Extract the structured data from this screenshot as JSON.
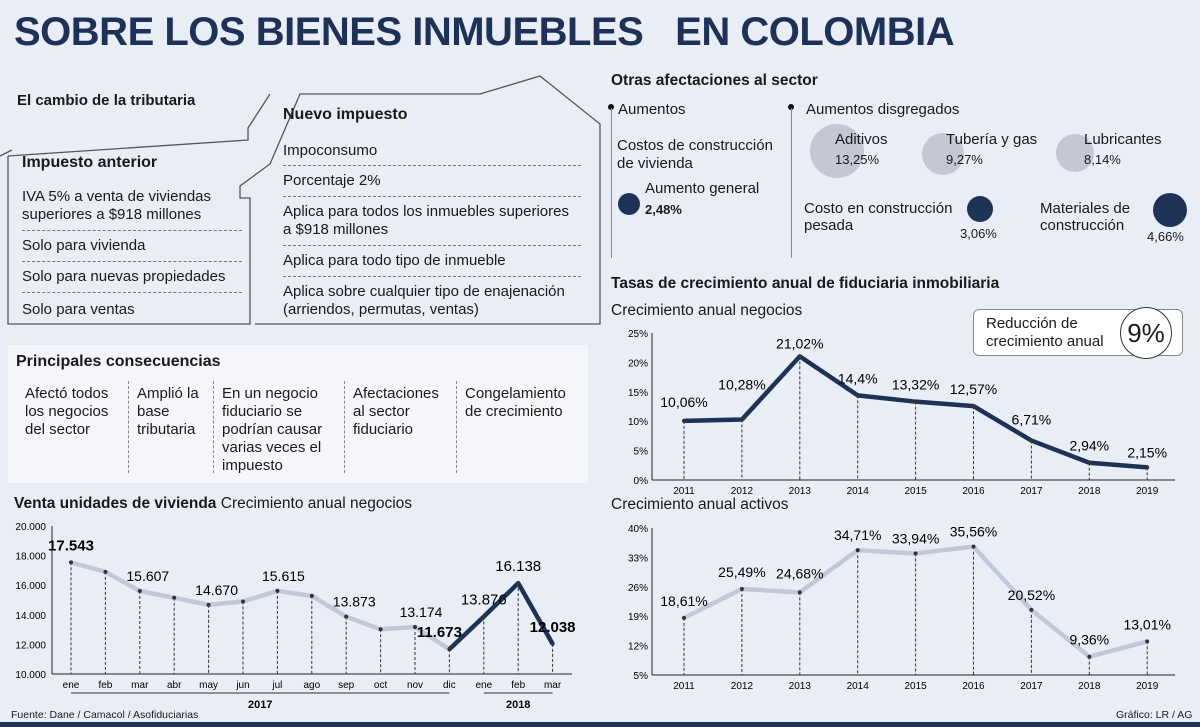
{
  "title": "SOBRE LOS BIENES INMUEBLES   EN COLOMBIA",
  "tributaria": {
    "heading": "El cambio de la tributaria",
    "anterior": {
      "heading": "Impuesto anterior",
      "items": [
        "IVA 5% a venta de viviendas superiores a $918 millones",
        "Solo para vivienda",
        "Solo para nuevas propiedades",
        "Solo para ventas"
      ]
    },
    "nuevo": {
      "heading": "Nuevo impuesto",
      "items": [
        "Impoconsumo",
        "Porcentaje 2%",
        "Aplica para todos los inmuebles superiores a $918 millones",
        "Aplica para todo tipo de inmueble",
        "Aplica sobre cualquier tipo de enajenación (arriendos, permutas, ventas)"
      ]
    }
  },
  "consecuencias": {
    "heading": "Principales consecuencias",
    "items": [
      "Afectó todos los negocios del sector",
      "Amplió la base tributaria",
      "En un negocio fiduciario se podrían causar varias veces el impuesto",
      "Afectaciones al sector fiduciario",
      "Congelamiento de crecimiento"
    ]
  },
  "afectaciones": {
    "heading": "Otras afectaciones al sector",
    "aumentos_label": "Aumentos",
    "costos_label": "Costos de construcción de vivienda",
    "general": {
      "label": "Aumento general",
      "value": "2,48%"
    },
    "desagregados_label": "Aumentos disgregados",
    "items": [
      {
        "label": "Aditivos",
        "value": "13,25%"
      },
      {
        "label": "Tubería y gas",
        "value": "9,27%"
      },
      {
        "label": "Lubricantes",
        "value": "8,14%"
      },
      {
        "label": "Costo en construcción pesada",
        "value": "3,06%"
      },
      {
        "label": "Materiales de construcción",
        "value": "4,66%"
      }
    ],
    "colors": {
      "light": "#c3c8d2",
      "dark": "#1e3258"
    }
  },
  "fiduciaria": {
    "heading": "Tasas de crecimiento anual de fiduciaria inmobiliaria",
    "reduccion": {
      "label": "Reducción de crecimiento anual",
      "value": "9%"
    }
  },
  "chart_data": [
    {
      "type": "line",
      "title": "Crecimiento anual negocios",
      "x": [
        "2011",
        "2012",
        "2013",
        "2014",
        "2015",
        "2016",
        "2017",
        "2018",
        "2019"
      ],
      "values": [
        10.06,
        10.28,
        21.02,
        14.4,
        13.32,
        12.57,
        6.71,
        2.94,
        2.15
      ],
      "labels": [
        "10,06%",
        "10,28%",
        "21,02%",
        "14,4%",
        "13,32%",
        "12,57%",
        "6,71%",
        "2,94%",
        "2,15%"
      ],
      "yticks": [
        "0%",
        "5%",
        "10%",
        "15%",
        "20%",
        "25%"
      ],
      "ylim": [
        0,
        25
      ],
      "color": "#1e3258"
    },
    {
      "type": "line",
      "title": "Crecimiento anual activos",
      "x": [
        "2011",
        "2012",
        "2013",
        "2014",
        "2015",
        "2016",
        "2017",
        "2018",
        "2019"
      ],
      "values": [
        18.61,
        25.49,
        24.68,
        34.71,
        33.94,
        35.56,
        20.52,
        9.36,
        13.01
      ],
      "labels": [
        "18,61%",
        "25,49%",
        "24,68%",
        "34,71%",
        "33,94%",
        "35,56%",
        "20,52%",
        "9,36%",
        "13,01%"
      ],
      "yticks": [
        "5%",
        "12%",
        "19%",
        "26%",
        "33%",
        "40%"
      ],
      "ylim": [
        5,
        40
      ],
      "color": "#c3c8d8"
    },
    {
      "type": "line",
      "title": "Venta unidades de vivienda",
      "subtitle": "Crecimiento anual negocios",
      "x": [
        "ene",
        "feb",
        "mar",
        "abr",
        "may",
        "jun",
        "jul",
        "ago",
        "sep",
        "oct",
        "nov",
        "dic",
        "ene",
        "feb",
        "mar"
      ],
      "values": [
        17543,
        16900,
        15607,
        15150,
        14670,
        14900,
        15615,
        15280,
        13873,
        13020,
        13174,
        11673,
        13876,
        16138,
        12038
      ],
      "labels": [
        "17.543",
        "",
        "15.607",
        "",
        "14.670",
        "",
        "15.615",
        "",
        "13.873",
        "",
        "13.174",
        "11.673",
        "13.876",
        "16.138",
        "12.038"
      ],
      "years": [
        "2017",
        "2018"
      ],
      "yticks": [
        "10.000",
        "12.000",
        "14.000",
        "16.000",
        "18.000",
        "20.000"
      ],
      "ylim": [
        10000,
        20000
      ],
      "colors": {
        "2017": "#c3c8d8",
        "2018": "#1e3258"
      }
    }
  ],
  "footer": {
    "source": "Fuente: Dane / Camacol / Asofiduciarias",
    "credit": "Gráfico: LR / AG"
  }
}
